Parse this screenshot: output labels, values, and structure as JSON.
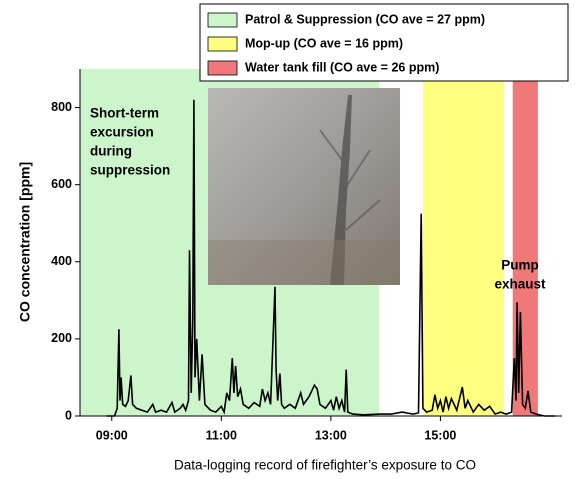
{
  "chart_data": {
    "type": "line",
    "ylabel": "CO concentration [ppm]",
    "xlabel": "Data-logging record of firefighter’s exposure to CO",
    "ylim": [
      0,
      900
    ],
    "yticks": [
      0,
      200,
      400,
      600,
      800
    ],
    "xlim": [
      8.42,
      17.22
    ],
    "xticks": [
      {
        "value": 9,
        "label": "09:00"
      },
      {
        "value": 11,
        "label": "11:00"
      },
      {
        "value": 13,
        "label": "13:00"
      },
      {
        "value": 15,
        "label": "15:00"
      }
    ],
    "regions": [
      {
        "name": "Patrol & Suppression (CO ave = 27 ppm)",
        "color": "#ccf5cc",
        "start": 8.42,
        "end": 13.88
      },
      {
        "name": "Mop-up (CO ave = 16 ppm)",
        "color": "#ffff80",
        "start": 14.68,
        "end": 16.16
      },
      {
        "name": "Water tank fill (CO ave = 26 ppm)",
        "color": "#f07878",
        "start": 16.32,
        "end": 16.78
      }
    ],
    "annotations": [
      [
        "Short-term",
        "excursion",
        "during",
        "suppression"
      ],
      [
        "Pump",
        "exhaust"
      ]
    ],
    "x": [
      8.9,
      9.05,
      9.1,
      9.13,
      9.15,
      9.17,
      9.2,
      9.25,
      9.3,
      9.35,
      9.38,
      9.45,
      9.55,
      9.65,
      9.75,
      9.8,
      9.9,
      10.0,
      10.1,
      10.15,
      10.25,
      10.3,
      10.35,
      10.4,
      10.42,
      10.45,
      10.48,
      10.5,
      10.52,
      10.55,
      10.6,
      10.65,
      10.7,
      10.8,
      10.9,
      11.0,
      11.05,
      11.1,
      11.15,
      11.2,
      11.23,
      11.26,
      11.3,
      11.35,
      11.4,
      11.5,
      11.6,
      11.7,
      11.75,
      11.8,
      11.85,
      11.9,
      11.98,
      12.0,
      12.03,
      12.07,
      12.1,
      12.15,
      12.25,
      12.35,
      12.45,
      12.5,
      12.6,
      12.7,
      12.75,
      12.8,
      12.9,
      13.0,
      13.05,
      13.1,
      13.15,
      13.2,
      13.25,
      13.28,
      13.31,
      13.4,
      13.6,
      13.9,
      14.1,
      14.3,
      14.5,
      14.6,
      14.65,
      14.68,
      14.75,
      14.85,
      14.9,
      14.95,
      15.0,
      15.05,
      15.1,
      15.15,
      15.2,
      15.3,
      15.4,
      15.45,
      15.5,
      15.6,
      15.7,
      15.8,
      15.9,
      16.0,
      16.1,
      16.2,
      16.3,
      16.35,
      16.38,
      16.4,
      16.43,
      16.46,
      16.5,
      16.55,
      16.6,
      16.65,
      16.75,
      16.9,
      17.1
    ],
    "series": [
      {
        "color": "#000000",
        "values": [
          0,
          0,
          20,
          225,
          40,
          100,
          30,
          25,
          40,
          105,
          30,
          20,
          15,
          10,
          30,
          10,
          15,
          10,
          35,
          10,
          20,
          30,
          15,
          40,
          430,
          60,
          250,
          820,
          100,
          200,
          40,
          160,
          30,
          15,
          10,
          25,
          10,
          60,
          40,
          150,
          60,
          130,
          50,
          70,
          30,
          20,
          35,
          25,
          70,
          40,
          60,
          30,
          335,
          120,
          40,
          110,
          30,
          20,
          30,
          20,
          60,
          30,
          50,
          80,
          70,
          30,
          20,
          40,
          15,
          50,
          20,
          40,
          10,
          120,
          10,
          5,
          3,
          5,
          5,
          10,
          5,
          8,
          525,
          20,
          10,
          15,
          55,
          20,
          40,
          10,
          50,
          20,
          45,
          15,
          75,
          20,
          40,
          10,
          30,
          15,
          25,
          5,
          10,
          5,
          10,
          150,
          40,
          295,
          60,
          270,
          30,
          20,
          65,
          10,
          5,
          0,
          0
        ]
      }
    ]
  }
}
